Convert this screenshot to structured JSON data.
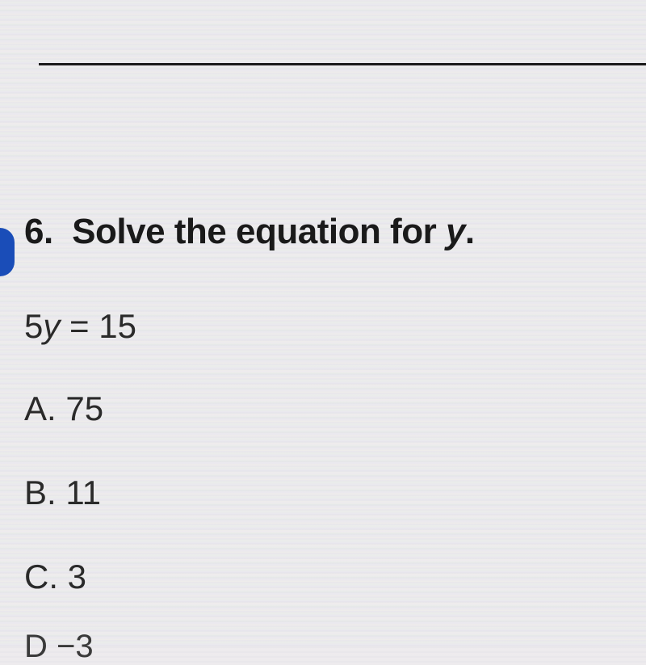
{
  "question": {
    "number": "6.",
    "prompt_prefix": "Solve the equation for ",
    "prompt_var": "y",
    "prompt_suffix": "."
  },
  "equation": {
    "coeff": "5",
    "var": "y",
    "eq": " = ",
    "rhs": "15"
  },
  "choices": {
    "a": {
      "label": "A.",
      "value": "75"
    },
    "b": {
      "label": "B.",
      "value": "11"
    },
    "c": {
      "label": "C.",
      "value": "3"
    },
    "d": {
      "label": "D",
      "value": "−3"
    }
  },
  "styling": {
    "text_color": "#1a1a1a",
    "background_base": "#e0dce0",
    "divider_color": "#1a1a1a",
    "blue_dot_color": "#1a4db8",
    "question_fontsize": 44,
    "body_fontsize": 42,
    "font_family": "Arial"
  }
}
